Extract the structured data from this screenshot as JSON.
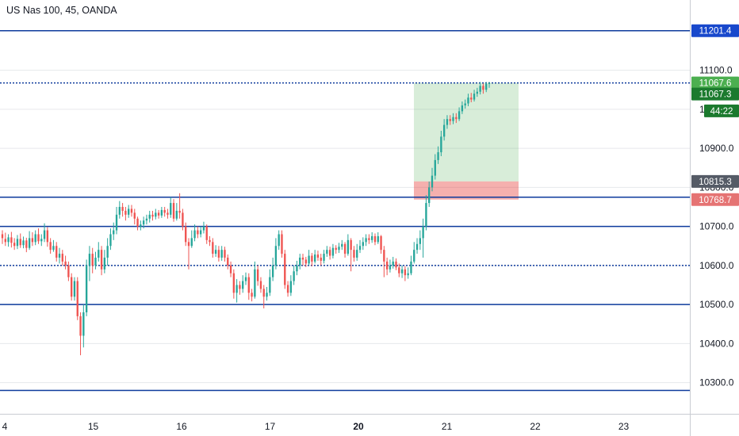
{
  "title": "US Nas 100, 45, OANDA",
  "chart_data": {
    "type": "candlestick",
    "title": "US Nas 100, 45, OANDA",
    "y_range": [
      10220,
      11280
    ],
    "y_ticks": [
      10300.0,
      10400.0,
      10500.0,
      10600.0,
      10700.0,
      10800.0,
      10900.0,
      11000.0,
      11100.0
    ],
    "y_tick_labels": [
      "10300.0",
      "10400.0",
      "10500.0",
      "10600.0",
      "10700.0",
      "10800.0",
      "10900.0",
      "11000.0",
      "11100.0"
    ],
    "x_tick_labels": [
      "4",
      "15",
      "16",
      "17",
      "20",
      "21",
      "22",
      "23"
    ],
    "x_tick_bold": [
      false,
      false,
      false,
      false,
      true,
      false,
      false,
      false
    ],
    "horizontal_levels": [
      {
        "price": 11201.4,
        "style": "solid",
        "color": "#0d3a9c"
      },
      {
        "price": 11067.6,
        "style": "dotted",
        "color": "#0d3a9c"
      },
      {
        "price": 10775.0,
        "style": "solid",
        "color": "#0d3a9c"
      },
      {
        "price": 10700.0,
        "style": "solid",
        "color": "#0d3a9c"
      },
      {
        "price": 10600.0,
        "style": "dotted",
        "color": "#0d3a9c"
      },
      {
        "price": 10500.0,
        "style": "solid",
        "color": "#0d3a9c"
      },
      {
        "price": 10280.0,
        "style": "solid",
        "color": "#0d3a9c"
      }
    ],
    "price_labels": [
      {
        "text": "11201.4",
        "price": 11201.4,
        "bg": "#1848cc"
      },
      {
        "text": "11067.6",
        "price": 11067.6,
        "bg": "#4caf50"
      },
      {
        "text": "11067.3",
        "price": 11039,
        "bg": "#1b7a2e"
      },
      {
        "text": "44:22",
        "price": 10996,
        "bg": "#1b7a2e"
      },
      {
        "text": "10815.3",
        "price": 10815.3,
        "bg": "#555b66"
      },
      {
        "text": "10768.7",
        "price": 10768.7,
        "bg": "#e57373"
      }
    ],
    "position": {
      "entry": 10815.3,
      "target": 11067.6,
      "stop": 10768.7,
      "profit_color": "#4caf50",
      "loss_color": "#e53935"
    },
    "candles": [
      [
        10680,
        10670,
        10690,
        10655
      ],
      [
        10668,
        10660,
        10684,
        10650
      ],
      [
        10660,
        10672,
        10680,
        10648
      ],
      [
        10672,
        10658,
        10686,
        10646
      ],
      [
        10658,
        10650,
        10670,
        10640
      ],
      [
        10650,
        10668,
        10678,
        10642
      ],
      [
        10668,
        10652,
        10682,
        10645
      ],
      [
        10652,
        10664,
        10674,
        10644
      ],
      [
        10664,
        10645,
        10671,
        10634
      ],
      [
        10645,
        10670,
        10688,
        10640
      ],
      [
        10670,
        10660,
        10685,
        10650
      ],
      [
        10660,
        10680,
        10690,
        10652
      ],
      [
        10680,
        10662,
        10695,
        10655
      ],
      [
        10662,
        10668,
        10680,
        10650
      ],
      [
        10668,
        10690,
        10708,
        10660
      ],
      [
        10690,
        10660,
        10698,
        10648
      ],
      [
        10660,
        10640,
        10670,
        10630
      ],
      [
        10640,
        10650,
        10665,
        10635
      ],
      [
        10650,
        10620,
        10660,
        10610
      ],
      [
        10620,
        10630,
        10645,
        10605
      ],
      [
        10630,
        10610,
        10640,
        10600
      ],
      [
        10610,
        10600,
        10625,
        10590
      ],
      [
        10600,
        10570,
        10610,
        10560
      ],
      [
        10570,
        10520,
        10580,
        10510
      ],
      [
        10520,
        10560,
        10570,
        10510
      ],
      [
        10560,
        10470,
        10570,
        10460
      ],
      [
        10470,
        10420,
        10480,
        10370
      ],
      [
        10420,
        10480,
        10500,
        10390
      ],
      [
        10480,
        10600,
        10615,
        10470
      ],
      [
        10600,
        10630,
        10650,
        10560
      ],
      [
        10630,
        10600,
        10645,
        10580
      ],
      [
        10600,
        10620,
        10635,
        10590
      ],
      [
        10620,
        10640,
        10660,
        10610
      ],
      [
        10640,
        10590,
        10650,
        10575
      ],
      [
        10590,
        10620,
        10640,
        10580
      ],
      [
        10620,
        10650,
        10670,
        10600
      ],
      [
        10650,
        10680,
        10695,
        10640
      ],
      [
        10680,
        10690,
        10710,
        10665
      ],
      [
        10690,
        10730,
        10750,
        10680
      ],
      [
        10730,
        10750,
        10765,
        10720
      ],
      [
        10750,
        10740,
        10760,
        10725
      ],
      [
        10740,
        10730,
        10750,
        10715
      ],
      [
        10730,
        10745,
        10755,
        10722
      ],
      [
        10745,
        10735,
        10755,
        10725
      ],
      [
        10735,
        10720,
        10745,
        10705
      ],
      [
        10720,
        10700,
        10725,
        10690
      ],
      [
        10700,
        10705,
        10715,
        10690
      ],
      [
        10705,
        10715,
        10725,
        10695
      ],
      [
        10715,
        10720,
        10730,
        10705
      ],
      [
        10720,
        10730,
        10740,
        10710
      ],
      [
        10730,
        10725,
        10740,
        10715
      ],
      [
        10725,
        10735,
        10745,
        10718
      ],
      [
        10735,
        10728,
        10742,
        10720
      ],
      [
        10728,
        10742,
        10750,
        10722
      ],
      [
        10742,
        10735,
        10750,
        10725
      ],
      [
        10735,
        10730,
        10745,
        10720
      ],
      [
        10730,
        10760,
        10775,
        10722
      ],
      [
        10760,
        10720,
        10770,
        10712
      ],
      [
        10720,
        10740,
        10760,
        10715
      ],
      [
        10740,
        10735,
        10785,
        10720
      ],
      [
        10735,
        10700,
        10745,
        10690
      ],
      [
        10700,
        10660,
        10710,
        10650
      ],
      [
        10660,
        10650,
        10670,
        10590
      ],
      [
        10650,
        10670,
        10690,
        10645
      ],
      [
        10670,
        10690,
        10705,
        10662
      ],
      [
        10690,
        10680,
        10700,
        10670
      ],
      [
        10680,
        10690,
        10700,
        10672
      ],
      [
        10690,
        10700,
        10712,
        10682
      ],
      [
        10700,
        10665,
        10705,
        10655
      ],
      [
        10665,
        10660,
        10675,
        10650
      ],
      [
        10660,
        10630,
        10670,
        10620
      ],
      [
        10630,
        10640,
        10652,
        10622
      ],
      [
        10640,
        10620,
        10650,
        10610
      ],
      [
        10620,
        10640,
        10650,
        10612
      ],
      [
        10640,
        10620,
        10648,
        10610
      ],
      [
        10620,
        10600,
        10628,
        10590
      ],
      [
        10600,
        10580,
        10610,
        10570
      ],
      [
        10580,
        10530,
        10590,
        10515
      ],
      [
        10530,
        10550,
        10565,
        10505
      ],
      [
        10550,
        10540,
        10560,
        10525
      ],
      [
        10540,
        10560,
        10575,
        10530
      ],
      [
        10560,
        10570,
        10582,
        10550
      ],
      [
        10570,
        10530,
        10580,
        10512
      ],
      [
        10530,
        10520,
        10540,
        10508
      ],
      [
        10520,
        10590,
        10610,
        10515
      ],
      [
        10590,
        10560,
        10600,
        10548
      ],
      [
        10560,
        10540,
        10570,
        10530
      ],
      [
        10540,
        10520,
        10550,
        10490
      ],
      [
        10520,
        10530,
        10545,
        10510
      ],
      [
        10530,
        10570,
        10590,
        10522
      ],
      [
        10570,
        10600,
        10620,
        10560
      ],
      [
        10600,
        10650,
        10670,
        10590
      ],
      [
        10650,
        10680,
        10690,
        10640
      ],
      [
        10680,
        10630,
        10690,
        10620
      ],
      [
        10630,
        10550,
        10640,
        10540
      ],
      [
        10550,
        10530,
        10560,
        10520
      ],
      [
        10530,
        10560,
        10575,
        10522
      ],
      [
        10560,
        10585,
        10600,
        10550
      ],
      [
        10585,
        10600,
        10612,
        10575
      ],
      [
        10600,
        10620,
        10630,
        10590
      ],
      [
        10620,
        10615,
        10630,
        10600
      ],
      [
        10615,
        10605,
        10622,
        10596
      ],
      [
        10605,
        10625,
        10640,
        10600
      ],
      [
        10625,
        10610,
        10632,
        10598
      ],
      [
        10610,
        10628,
        10640,
        10605
      ],
      [
        10628,
        10620,
        10638,
        10612
      ],
      [
        10620,
        10612,
        10630,
        10600
      ],
      [
        10612,
        10630,
        10640,
        10605
      ],
      [
        10630,
        10640,
        10650,
        10622
      ],
      [
        10640,
        10625,
        10648,
        10615
      ],
      [
        10625,
        10645,
        10655,
        10618
      ],
      [
        10645,
        10640,
        10652,
        10630
      ],
      [
        10640,
        10648,
        10658,
        10632
      ],
      [
        10648,
        10655,
        10665,
        10640
      ],
      [
        10655,
        10630,
        10660,
        10620
      ],
      [
        10630,
        10665,
        10680,
        10625
      ],
      [
        10665,
        10640,
        10670,
        10585
      ],
      [
        10640,
        10620,
        10650,
        10610
      ],
      [
        10620,
        10640,
        10655,
        10612
      ],
      [
        10640,
        10650,
        10665,
        10632
      ],
      [
        10650,
        10660,
        10672,
        10640
      ],
      [
        10660,
        10670,
        10680,
        10650
      ],
      [
        10670,
        10665,
        10680,
        10655
      ],
      [
        10665,
        10675,
        10685,
        10658
      ],
      [
        10675,
        10660,
        10682,
        10652
      ],
      [
        10660,
        10675,
        10685,
        10655
      ],
      [
        10675,
        10640,
        10678,
        10630
      ],
      [
        10640,
        10610,
        10650,
        10570
      ],
      [
        10610,
        10590,
        10620,
        10575
      ],
      [
        10590,
        10600,
        10615,
        10582
      ],
      [
        10600,
        10610,
        10622,
        10592
      ],
      [
        10610,
        10595,
        10618,
        10588
      ],
      [
        10595,
        10580,
        10605,
        10570
      ],
      [
        10580,
        10590,
        10600,
        10568
      ],
      [
        10590,
        10575,
        10598,
        10560
      ],
      [
        10575,
        10580,
        10595,
        10566
      ],
      [
        10580,
        10610,
        10625,
        10575
      ],
      [
        10610,
        10640,
        10660,
        10605
      ],
      [
        10640,
        10655,
        10670,
        10630
      ],
      [
        10655,
        10670,
        10690,
        10640
      ],
      [
        10670,
        10700,
        10720,
        10620
      ],
      [
        10700,
        10760,
        10780,
        10690
      ],
      [
        10760,
        10800,
        10815,
        10750
      ],
      [
        10800,
        10830,
        10850,
        10790
      ],
      [
        10830,
        10870,
        10885,
        10820
      ],
      [
        10870,
        10890,
        10905,
        10860
      ],
      [
        10890,
        10930,
        10945,
        10880
      ],
      [
        10930,
        10960,
        10975,
        10920
      ],
      [
        10960,
        10975,
        10985,
        10950
      ],
      [
        10975,
        10970,
        10985,
        10960
      ],
      [
        10970,
        10980,
        10990,
        10962
      ],
      [
        10980,
        10975,
        10990,
        10965
      ],
      [
        10975,
        10995,
        11005,
        10970
      ],
      [
        10995,
        11010,
        11020,
        10988
      ],
      [
        11010,
        11015,
        11025,
        11002
      ],
      [
        11015,
        11030,
        11040,
        11008
      ],
      [
        11030,
        11025,
        11042,
        11018
      ],
      [
        11025,
        11040,
        11050,
        11020
      ],
      [
        11040,
        11045,
        11055,
        11032
      ],
      [
        11045,
        11060,
        11070,
        11038
      ],
      [
        11060,
        11050,
        11066,
        11040
      ],
      [
        11050,
        11065,
        11070,
        11044
      ],
      [
        11065,
        11067.3,
        11070,
        11055
      ]
    ],
    "candle_color_up": "#26a69a",
    "candle_color_down": "#ef5350"
  }
}
